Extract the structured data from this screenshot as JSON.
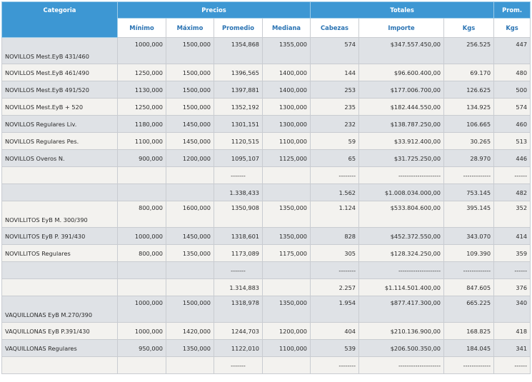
{
  "header": {
    "categoria": "Categoria",
    "precios": "Precios",
    "totales": "Totales",
    "prom": "Prom.",
    "sub": [
      "Mínimo",
      "Máximo",
      "Promedio",
      "Mediana",
      "Cabezas",
      "Importe",
      "Kgs",
      "Kgs"
    ]
  },
  "rows": [
    {
      "kind": "data",
      "tall": true,
      "shade": "gray",
      "cat": "NOVILLOS Mest.EyB 431/460",
      "min": "1000,000",
      "max": "1500,000",
      "prom": "1354,868",
      "med": "1355,000",
      "cab": "574",
      "imp": "$347.557.450,00",
      "kgs": "256.525",
      "pkgs": "447"
    },
    {
      "kind": "data",
      "shade": "light",
      "cat": "NOVILLOS Mest.EyB 461/490",
      "min": "1250,000",
      "max": "1500,000",
      "prom": "1396,565",
      "med": "1400,000",
      "cab": "144",
      "imp": "$96.600.400,00",
      "kgs": "69.170",
      "pkgs": "480"
    },
    {
      "kind": "data",
      "shade": "gray",
      "cat": "NOVILLOS Mest.EyB 491/520",
      "min": "1130,000",
      "max": "1500,000",
      "prom": "1397,881",
      "med": "1400,000",
      "cab": "253",
      "imp": "$177.006.700,00",
      "kgs": "126.625",
      "pkgs": "500"
    },
    {
      "kind": "data",
      "shade": "light",
      "cat": "NOVILLOS Mest.EyB + 520",
      "min": "1250,000",
      "max": "1500,000",
      "prom": "1352,192",
      "med": "1300,000",
      "cab": "235",
      "imp": "$182.444.550,00",
      "kgs": "134.925",
      "pkgs": "574"
    },
    {
      "kind": "data",
      "shade": "gray",
      "cat": "NOVILLOS Regulares Liv.",
      "min": "1180,000",
      "max": "1450,000",
      "prom": "1301,151",
      "med": "1300,000",
      "cab": "232",
      "imp": "$138.787.250,00",
      "kgs": "106.665",
      "pkgs": "460"
    },
    {
      "kind": "data",
      "shade": "light",
      "cat": "NOVILLOS Regulares Pes.",
      "min": "1100,000",
      "max": "1450,000",
      "prom": "1120,515",
      "med": "1100,000",
      "cab": "59",
      "imp": "$33.912.400,00",
      "kgs": "30.265",
      "pkgs": "513"
    },
    {
      "kind": "data",
      "shade": "gray",
      "cat": "NOVILLOS Overos N.",
      "min": "900,000",
      "max": "1200,000",
      "prom": "1095,107",
      "med": "1125,000",
      "cab": "65",
      "imp": "$31.725.250,00",
      "kgs": "28.970",
      "pkgs": "446"
    },
    {
      "kind": "sep",
      "shade": "light",
      "prom": "-------",
      "cab": "--------",
      "imp": "--------------------",
      "kgs": "-------------",
      "pkgs": "------"
    },
    {
      "kind": "total",
      "shade": "gray",
      "prom": "1.338,433",
      "cab": "1.562",
      "imp": "$1.008.034.000,00",
      "kgs": "753.145",
      "pkgs": "482"
    },
    {
      "kind": "data",
      "tall": true,
      "shade": "light",
      "cat": "NOVILLITOS EyB M. 300/390",
      "min": "800,000",
      "max": "1600,000",
      "prom": "1350,908",
      "med": "1350,000",
      "cab": "1.124",
      "imp": "$533.804.600,00",
      "kgs": "395.145",
      "pkgs": "352"
    },
    {
      "kind": "data",
      "shade": "gray",
      "cat": "NOVILLITOS EyB P. 391/430",
      "min": "1000,000",
      "max": "1450,000",
      "prom": "1318,601",
      "med": "1350,000",
      "cab": "828",
      "imp": "$452.372.550,00",
      "kgs": "343.070",
      "pkgs": "414"
    },
    {
      "kind": "data",
      "shade": "light",
      "cat": "NOVILLITOS Regulares",
      "min": "800,000",
      "max": "1350,000",
      "prom": "1173,089",
      "med": "1175,000",
      "cab": "305",
      "imp": "$128.324.250,00",
      "kgs": "109.390",
      "pkgs": "359"
    },
    {
      "kind": "sep",
      "shade": "gray",
      "prom": "-------",
      "cab": "--------",
      "imp": "--------------------",
      "kgs": "-------------",
      "pkgs": "------"
    },
    {
      "kind": "total",
      "shade": "light",
      "prom": "1.314,883",
      "cab": "2.257",
      "imp": "$1.114.501.400,00",
      "kgs": "847.605",
      "pkgs": "376"
    },
    {
      "kind": "data",
      "tall": true,
      "shade": "gray",
      "cat": "VAQUILLONAS EyB M.270/390",
      "min": "1000,000",
      "max": "1500,000",
      "prom": "1318,978",
      "med": "1350,000",
      "cab": "1.954",
      "imp": "$877.417.300,00",
      "kgs": "665.225",
      "pkgs": "340"
    },
    {
      "kind": "data",
      "shade": "light",
      "cat": "VAQUILLONAS EyB P.391/430",
      "min": "1000,000",
      "max": "1420,000",
      "prom": "1244,703",
      "med": "1200,000",
      "cab": "404",
      "imp": "$210.136.900,00",
      "kgs": "168.825",
      "pkgs": "418"
    },
    {
      "kind": "data",
      "shade": "gray",
      "cat": "VAQUILLONAS Regulares",
      "min": "950,000",
      "max": "1350,000",
      "prom": "1122,010",
      "med": "1100,000",
      "cab": "539",
      "imp": "$206.500.350,00",
      "kgs": "184.045",
      "pkgs": "341"
    },
    {
      "kind": "sep",
      "shade": "light",
      "prom": "-------",
      "cab": "--------",
      "imp": "--------------------",
      "kgs": "-------------",
      "pkgs": "------"
    }
  ]
}
